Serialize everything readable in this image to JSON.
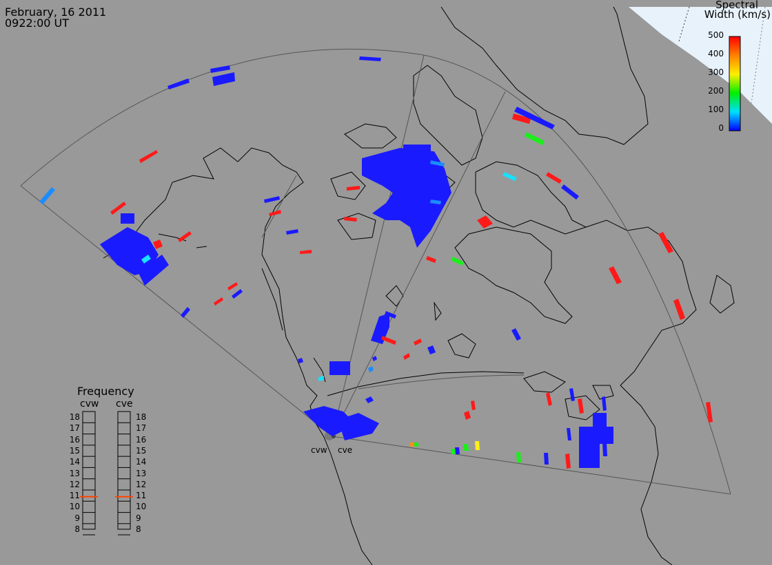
{
  "header": {
    "date": "February, 16 2011",
    "time": "0922:00 UT"
  },
  "colorbar": {
    "title_line1": "Spectral",
    "title_line2": "Width (km/s)",
    "ticks": [
      "500",
      "400",
      "300",
      "200",
      "100",
      "0"
    ]
  },
  "radars": {
    "west": "cvw",
    "east": "cve"
  },
  "frequency_panel": {
    "title": "Frequency",
    "west_label": "cvw",
    "east_label": "cve",
    "scale": [
      "18",
      "17",
      "16",
      "15",
      "14",
      "13",
      "12",
      "11",
      "10",
      "9",
      "8"
    ],
    "west_freq_mhz": 10.9,
    "east_freq_mhz": 10.9,
    "marker_color": "#ff4400"
  },
  "colors": {
    "background": "#999999",
    "land_outline": "#000000",
    "fov_outline": "#555555",
    "blue": "#1a1aff",
    "red": "#ff1a1a"
  }
}
